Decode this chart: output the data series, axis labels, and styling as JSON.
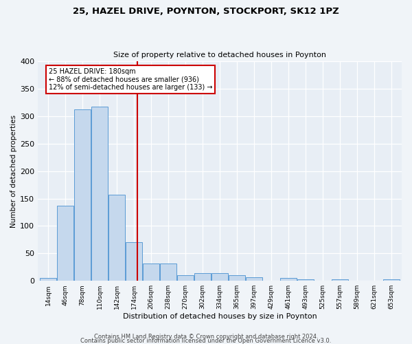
{
  "title1": "25, HAZEL DRIVE, POYNTON, STOCKPORT, SK12 1PZ",
  "title2": "Size of property relative to detached houses in Poynton",
  "xlabel": "Distribution of detached houses by size in Poynton",
  "ylabel": "Number of detached properties",
  "footer1": "Contains HM Land Registry data © Crown copyright and database right 2024.",
  "footer2": "Contains public sector information licensed under the Open Government Licence v3.0.",
  "bin_labels": [
    "14sqm",
    "46sqm",
    "78sqm",
    "110sqm",
    "142sqm",
    "174sqm",
    "206sqm",
    "238sqm",
    "270sqm",
    "302sqm",
    "334sqm",
    "365sqm",
    "397sqm",
    "429sqm",
    "461sqm",
    "493sqm",
    "525sqm",
    "557sqm",
    "589sqm",
    "621sqm",
    "653sqm"
  ],
  "bar_values": [
    5,
    137,
    312,
    317,
    157,
    70,
    32,
    32,
    10,
    14,
    14,
    10,
    7,
    0,
    5,
    3,
    0,
    3,
    0,
    0,
    3
  ],
  "bar_color": "#c5d8ed",
  "bar_edge_color": "#5b9bd5",
  "property_size_label": "25 HAZEL DRIVE: 180sqm",
  "annotation_line1": "← 88% of detached houses are smaller (936)",
  "annotation_line2": "12% of semi-detached houses are larger (133) →",
  "vline_color": "#cc0000",
  "ylim": [
    0,
    400
  ],
  "yticks": [
    0,
    50,
    100,
    150,
    200,
    250,
    300,
    350,
    400
  ],
  "bg_color": "#e8eef5",
  "fig_bg_color": "#f0f4f8",
  "annotation_box_color": "#ffffff",
  "annotation_box_edge": "#cc0000",
  "bin_width": 32,
  "vline_x_index": 5,
  "vline_x_offset": 0.1875
}
